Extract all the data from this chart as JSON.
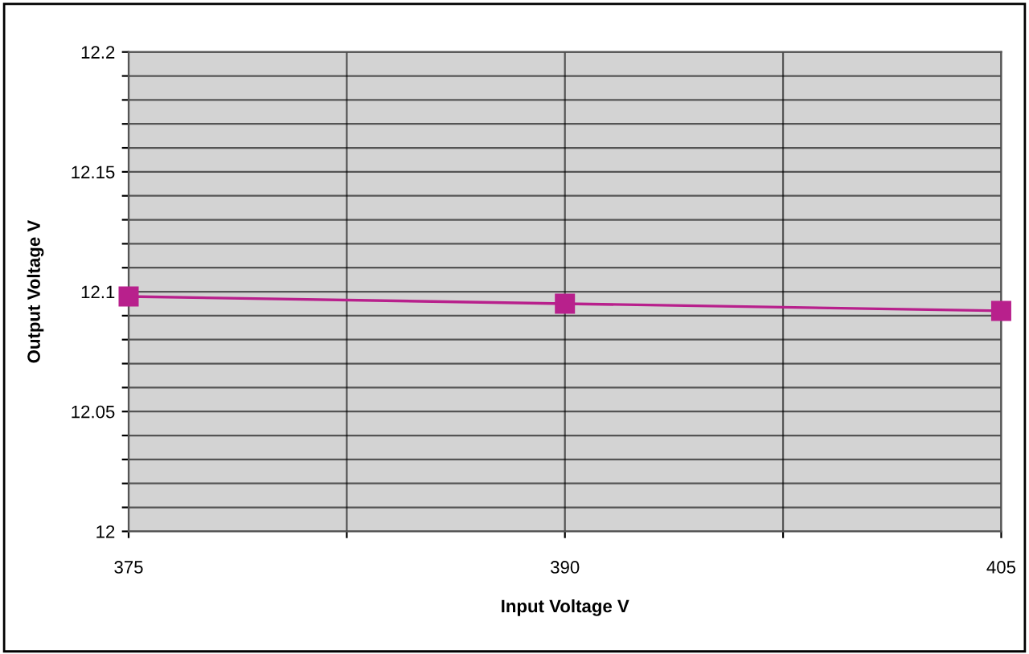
{
  "chart_data": {
    "type": "line",
    "xlabel": "Input Voltage V",
    "ylabel": "Output Voltage V",
    "x": [
      375,
      390,
      405
    ],
    "series": [
      {
        "color": "#b8208c",
        "values": [
          12.098,
          12.095,
          12.092
        ]
      }
    ],
    "marker": "square",
    "line_style": "solid",
    "grid": true,
    "xlim": [
      375,
      405
    ],
    "xticks": [
      375,
      {
        "value": 382.5,
        "label": null
      },
      390,
      {
        "value": 397.5,
        "label": null
      },
      405
    ],
    "ylim": [
      12,
      12.2
    ],
    "yticks": [
      12,
      {
        "value": 12.01,
        "label": null
      },
      {
        "value": 12.02,
        "label": null
      },
      {
        "value": 12.03,
        "label": null
      },
      {
        "value": 12.04,
        "label": null
      },
      12.05,
      {
        "value": 12.06,
        "label": null
      },
      {
        "value": 12.07,
        "label": null
      },
      {
        "value": 12.08,
        "label": null
      },
      {
        "value": 12.09,
        "label": null
      },
      12.1,
      {
        "value": 12.11,
        "label": null
      },
      {
        "value": 12.12,
        "label": null
      },
      {
        "value": 12.13,
        "label": null
      },
      {
        "value": 12.14,
        "label": null
      },
      12.15,
      {
        "value": 12.16,
        "label": null
      },
      {
        "value": 12.17,
        "label": null
      },
      {
        "value": 12.18,
        "label": null
      },
      {
        "value": 12.19,
        "label": null
      },
      12.2
    ]
  }
}
